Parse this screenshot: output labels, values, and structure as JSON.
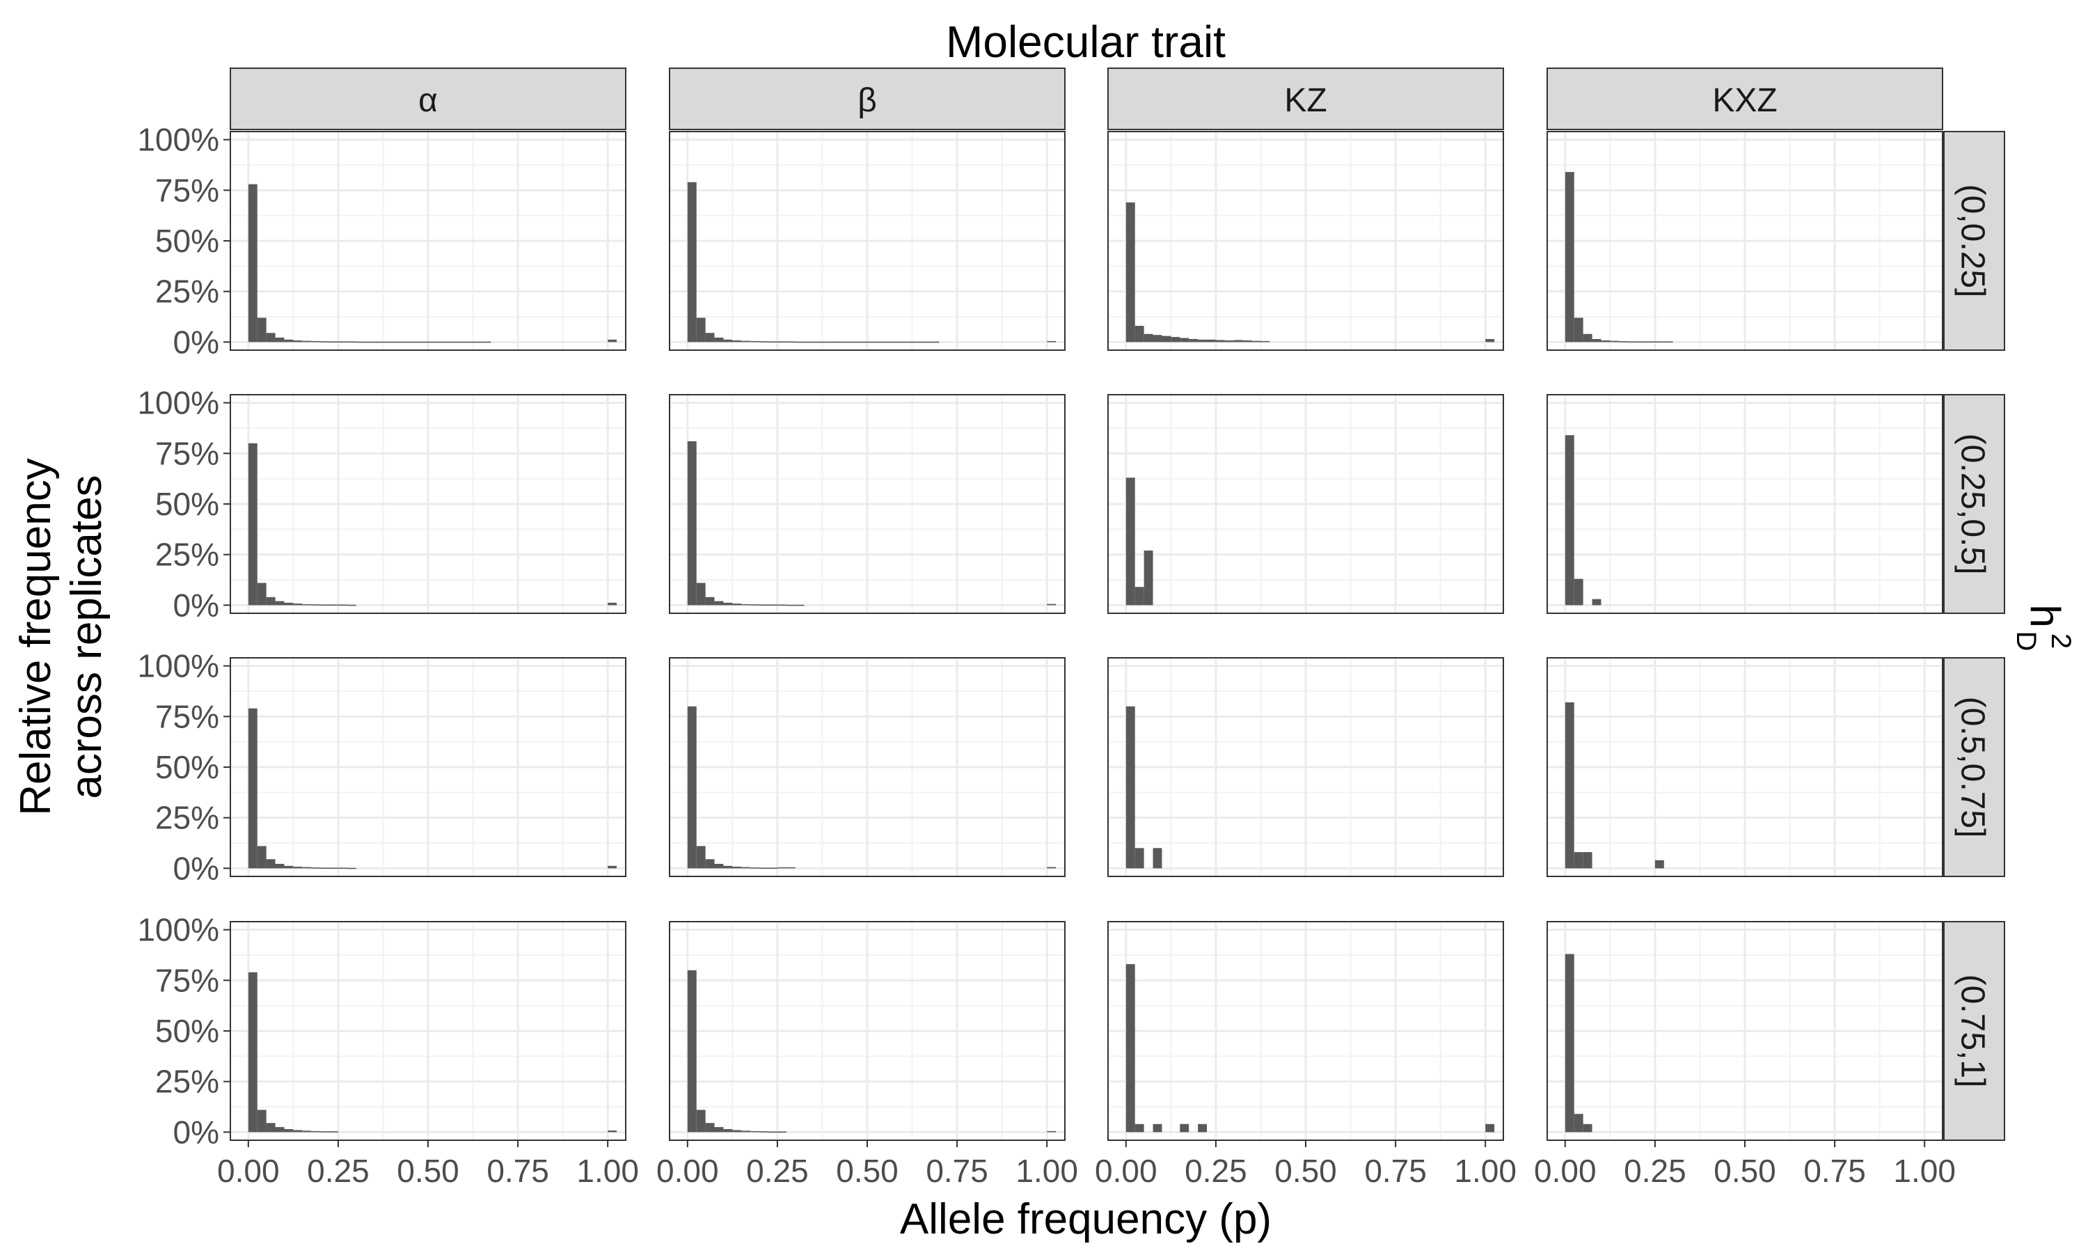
{
  "chart_data": {
    "type": "bar",
    "title": "Molecular trait",
    "xlabel": "Allele frequency (p)",
    "ylabel_lines": [
      "Relative frequency",
      "across replicates"
    ],
    "facet_row_title": "h",
    "facet_row_title_sup": "2",
    "facet_row_title_sub": "D",
    "columns": [
      "α",
      "β",
      "KZ",
      "KXZ"
    ],
    "rows": [
      "(0,0.25]",
      "(0.25,0.5]",
      "(0.5,0.75]",
      "(0.75,1]"
    ],
    "xlim": [
      -0.05,
      1.05
    ],
    "ylim": [
      -0.04,
      1.04
    ],
    "x_ticks": [
      0,
      0.25,
      0.5,
      0.75,
      1
    ],
    "x_tick_labels": [
      "0.00",
      "0.25",
      "0.50",
      "0.75",
      "1.00"
    ],
    "y_ticks": [
      0,
      0.25,
      0.5,
      0.75,
      1
    ],
    "y_tick_labels": [
      "0%",
      "25%",
      "50%",
      "75%",
      "100%"
    ],
    "bin_width": 0.025,
    "bar_color": "#595959",
    "panels": [
      [
        {
          "bins": [
            0,
            0.025,
            0.05,
            0.075,
            0.1,
            0.125,
            0.15,
            0.175,
            0.2,
            0.225,
            0.25,
            0.275,
            0.3,
            0.325,
            0.35,
            0.375,
            0.4,
            0.425,
            0.45,
            0.475,
            0.5,
            0.525,
            0.55,
            0.575,
            0.6,
            0.625,
            0.65,
            1.0
          ],
          "values": [
            0.78,
            0.12,
            0.045,
            0.022,
            0.012,
            0.008,
            0.006,
            0.005,
            0.004,
            0.003,
            0.003,
            0.003,
            0.002,
            0.002,
            0.002,
            0.002,
            0.002,
            0.002,
            0.002,
            0.002,
            0.002,
            0.002,
            0.002,
            0.002,
            0.002,
            0.002,
            0.002,
            0.012
          ]
        },
        {
          "bins": [
            0,
            0.025,
            0.05,
            0.075,
            0.1,
            0.125,
            0.15,
            0.175,
            0.2,
            0.225,
            0.25,
            0.275,
            0.3,
            0.325,
            0.35,
            0.375,
            0.4,
            0.425,
            0.45,
            0.475,
            0.5,
            0.525,
            0.55,
            0.575,
            0.6,
            0.625,
            0.65,
            0.675,
            1.0
          ],
          "values": [
            0.79,
            0.12,
            0.045,
            0.022,
            0.012,
            0.008,
            0.006,
            0.005,
            0.004,
            0.003,
            0.003,
            0.003,
            0.002,
            0.002,
            0.002,
            0.002,
            0.002,
            0.002,
            0.002,
            0.002,
            0.002,
            0.002,
            0.002,
            0.002,
            0.002,
            0.002,
            0.002,
            0.002,
            0.005
          ]
        },
        {
          "bins": [
            0,
            0.025,
            0.05,
            0.075,
            0.1,
            0.125,
            0.15,
            0.175,
            0.2,
            0.225,
            0.25,
            0.275,
            0.3,
            0.325,
            0.35,
            0.375,
            1.0
          ],
          "values": [
            0.69,
            0.08,
            0.04,
            0.035,
            0.03,
            0.025,
            0.02,
            0.015,
            0.012,
            0.012,
            0.01,
            0.008,
            0.01,
            0.008,
            0.006,
            0.005,
            0.015
          ]
        },
        {
          "bins": [
            0,
            0.025,
            0.05,
            0.075,
            0.1,
            0.125,
            0.15,
            0.175,
            0.2,
            0.225,
            0.25,
            0.275
          ],
          "values": [
            0.84,
            0.12,
            0.04,
            0.015,
            0.008,
            0.006,
            0.004,
            0.003,
            0.003,
            0.003,
            0.003,
            0.003
          ]
        }
      ],
      [
        {
          "bins": [
            0,
            0.025,
            0.05,
            0.075,
            0.1,
            0.125,
            0.15,
            0.175,
            0.2,
            0.225,
            0.25,
            0.275,
            1.0
          ],
          "values": [
            0.8,
            0.11,
            0.04,
            0.02,
            0.012,
            0.008,
            0.005,
            0.004,
            0.003,
            0.003,
            0.003,
            0.002,
            0.012
          ]
        },
        {
          "bins": [
            0,
            0.025,
            0.05,
            0.075,
            0.1,
            0.125,
            0.15,
            0.175,
            0.2,
            0.225,
            0.25,
            0.275,
            0.3,
            1.0
          ],
          "values": [
            0.81,
            0.11,
            0.04,
            0.02,
            0.012,
            0.008,
            0.005,
            0.004,
            0.003,
            0.003,
            0.003,
            0.002,
            0.002,
            0.006
          ]
        },
        {
          "bins": [
            0,
            0.025,
            0.05
          ],
          "values": [
            0.63,
            0.09,
            0.27
          ]
        },
        {
          "bins": [
            0,
            0.025,
            0.075
          ],
          "values": [
            0.84,
            0.13,
            0.03
          ]
        }
      ],
      [
        {
          "bins": [
            0,
            0.025,
            0.05,
            0.075,
            0.1,
            0.125,
            0.15,
            0.175,
            0.2,
            0.225,
            0.25,
            0.275,
            1.0
          ],
          "values": [
            0.79,
            0.11,
            0.045,
            0.022,
            0.012,
            0.008,
            0.006,
            0.004,
            0.003,
            0.003,
            0.003,
            0.002,
            0.012
          ]
        },
        {
          "bins": [
            0,
            0.025,
            0.05,
            0.075,
            0.1,
            0.125,
            0.15,
            0.175,
            0.2,
            0.225,
            0.25,
            0.275,
            1.0
          ],
          "values": [
            0.8,
            0.11,
            0.045,
            0.022,
            0.012,
            0.008,
            0.006,
            0.004,
            0.003,
            0.003,
            0.005,
            0.005,
            0.006
          ]
        },
        {
          "bins": [
            0,
            0.025,
            0.075
          ],
          "values": [
            0.8,
            0.1,
            0.1
          ]
        },
        {
          "bins": [
            0,
            0.025,
            0.05,
            0.25
          ],
          "values": [
            0.82,
            0.08,
            0.08,
            0.04
          ]
        }
      ],
      [
        {
          "bins": [
            0,
            0.025,
            0.05,
            0.075,
            0.1,
            0.125,
            0.15,
            0.175,
            0.2,
            0.225,
            1.0
          ],
          "values": [
            0.79,
            0.11,
            0.045,
            0.025,
            0.015,
            0.01,
            0.007,
            0.005,
            0.004,
            0.004,
            0.008
          ]
        },
        {
          "bins": [
            0,
            0.025,
            0.05,
            0.075,
            0.1,
            0.125,
            0.15,
            0.175,
            0.2,
            0.225,
            0.25,
            1.0
          ],
          "values": [
            0.8,
            0.11,
            0.045,
            0.025,
            0.015,
            0.01,
            0.007,
            0.005,
            0.004,
            0.003,
            0.003,
            0.005
          ]
        },
        {
          "bins": [
            0,
            0.025,
            0.075,
            0.15,
            0.2,
            1.0
          ],
          "values": [
            0.83,
            0.04,
            0.04,
            0.04,
            0.04,
            0.04
          ]
        },
        {
          "bins": [
            0,
            0.025,
            0.05
          ],
          "values": [
            0.88,
            0.09,
            0.04
          ]
        }
      ]
    ]
  }
}
